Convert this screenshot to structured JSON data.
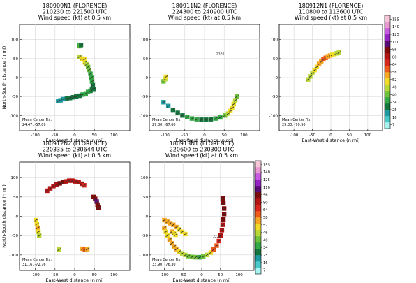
{
  "chart_data": [
    {
      "type": "scatter",
      "title_lines": [
        "180909N1 (FLORENCE)",
        "210230 to 221500 UTC",
        "Wind speed (kt) at 0.5 km"
      ],
      "xlabel": "East-West distance (n mi)",
      "ylabel": "North-South distance (n mi)",
      "xlim": [
        -140,
        140
      ],
      "ylim": [
        -140,
        140
      ],
      "xticks": [
        -100,
        -50,
        0,
        50,
        100
      ],
      "yticks": [
        -100,
        -50,
        0,
        50,
        100
      ],
      "grid": true,
      "fix_label": "Mean Center Fix:",
      "fix_value": "24.47, -57.09",
      "annotation": "",
      "series": [
        {
          "x": [
            12,
            14,
            16
          ],
          "y": [
            85,
            83,
            86
          ],
          "wind": [
            34,
            40,
            30
          ]
        },
        {
          "x": [
            12,
            18,
            24,
            26,
            30,
            34,
            36,
            40,
            42,
            44,
            46,
            48
          ],
          "y": [
            55,
            50,
            48,
            40,
            35,
            28,
            20,
            10,
            0,
            -10,
            -20,
            -30
          ],
          "wind": [
            50,
            52,
            56,
            52,
            48,
            44,
            40,
            38,
            36,
            34,
            30,
            28
          ]
        },
        {
          "x": [
            44,
            40,
            34,
            28,
            20,
            12,
            4,
            -4,
            -12,
            -20,
            -30,
            -36,
            -42
          ],
          "y": [
            -30,
            -35,
            -38,
            -42,
            -45,
            -48,
            -50,
            -52,
            -54,
            -55,
            -57,
            -60,
            -62
          ],
          "wind": [
            28,
            30,
            34,
            36,
            34,
            32,
            30,
            28,
            26,
            25,
            22,
            20,
            18
          ]
        }
      ]
    },
    {
      "type": "scatter",
      "title_lines": [
        "180911N2 (FLORENCE)",
        "224300 to 240900 UTC",
        "Wind speed (kt) at 0.5 km"
      ],
      "xlabel": "East-West distance (n mi)",
      "ylabel": "",
      "xlim": [
        -140,
        140
      ],
      "ylim": [
        -140,
        140
      ],
      "xticks": [
        -100,
        -50,
        0,
        50,
        100
      ],
      "yticks": [
        -100,
        -50,
        0,
        50,
        100
      ],
      "grid": true,
      "fix_label": "Mean Center Fix:",
      "fix_value": "27.80, -67.60",
      "annotation": "2320",
      "series": [
        {
          "x": [
            -104,
            -100,
            -98
          ],
          "y": [
            -10,
            -4,
            2
          ],
          "wind": [
            40,
            46,
            52
          ]
        },
        {
          "x": [
            -104,
            -92,
            -80,
            -68,
            -56,
            -44,
            -32,
            -20,
            -8,
            4,
            16,
            28,
            40,
            52,
            60,
            66,
            70,
            74,
            78,
            82
          ],
          "y": [
            -65,
            -75,
            -85,
            -93,
            -100,
            -104,
            -108,
            -110,
            -111,
            -111,
            -110,
            -108,
            -105,
            -100,
            -95,
            -88,
            -80,
            -70,
            -60,
            -50
          ],
          "wind": [
            18,
            22,
            26,
            30,
            32,
            34,
            34,
            34,
            33,
            32,
            32,
            34,
            38,
            44,
            50,
            54,
            56,
            52,
            46,
            40
          ]
        }
      ]
    },
    {
      "type": "scatter",
      "title_lines": [
        "180912N1 (FLORENCE)",
        "110800 to 113600 UTC",
        "Wind speed (kt) at 0.5 km"
      ],
      "xlabel": "East-West distance (n mi)",
      "ylabel": "",
      "xlim": [
        -140,
        140
      ],
      "ylim": [
        -140,
        140
      ],
      "xticks": [
        -100,
        -50,
        0,
        50,
        100
      ],
      "yticks": [
        -100,
        -50,
        0,
        50,
        100
      ],
      "grid": true,
      "fix_label": "Mean Center Fix:",
      "fix_value": "29.30, -70.50",
      "annotation": "",
      "series": [
        {
          "x": [
            -62,
            -56,
            -50,
            -44,
            -38,
            -32,
            -26,
            -20,
            -14,
            -8,
            -2,
            4,
            10,
            16,
            22
          ],
          "y": [
            -5,
            3,
            12,
            20,
            28,
            36,
            42,
            48,
            52,
            56,
            58,
            60,
            62,
            64,
            66
          ],
          "wind": [
            46,
            48,
            50,
            52,
            56,
            58,
            60,
            64,
            64,
            62,
            58,
            56,
            52,
            50,
            46
          ]
        }
      ]
    },
    {
      "type": "scatter",
      "title_lines": [
        "180912N2 (FLORENCE)",
        "220335 to 230644 UTC",
        "Wind speed (kt) at 0.5 km"
      ],
      "xlabel": "East-West distance (n mi)",
      "ylabel": "North-South distance (n mi)",
      "xlim": [
        -140,
        140
      ],
      "ylim": [
        -140,
        140
      ],
      "xticks": [
        -100,
        -50,
        0,
        50,
        100
      ],
      "yticks": [
        -100,
        -50,
        0,
        50,
        100
      ],
      "grid": true,
      "fix_label": "Mean Center Fix:",
      "fix_value": "31.16, -72.76",
      "annotation": "",
      "series": [
        {
          "x": [
            -70,
            -62,
            -54,
            -46,
            -38,
            -30,
            -22,
            -14,
            -6,
            2,
            10,
            18,
            24
          ],
          "y": [
            66,
            72,
            78,
            82,
            85,
            88,
            90,
            92,
            92,
            90,
            88,
            84,
            80
          ],
          "wind": [
            96,
            100,
            104,
            108,
            110,
            110,
            108,
            104,
            102,
            100,
            98,
            96,
            92
          ]
        },
        {
          "x": [
            48,
            52,
            56,
            58,
            60
          ],
          "y": [
            50,
            45,
            38,
            30,
            22
          ],
          "wind": [
            120,
            124,
            126,
            124,
            120
          ]
        },
        {
          "x": [
            -98,
            -96,
            -94,
            -92,
            -90
          ],
          "y": [
            -10,
            -20,
            -30,
            -40,
            -50
          ],
          "wind": [
            52,
            56,
            58,
            54,
            48
          ]
        },
        {
          "x": [
            20,
            26,
            32
          ],
          "y": [
            -84,
            -86,
            -85
          ],
          "wind": [
            62,
            64,
            58
          ]
        },
        {
          "x": [
            -40
          ],
          "y": [
            -86
          ],
          "wind": [
            48
          ]
        }
      ]
    },
    {
      "type": "scatter",
      "title_lines": [
        "180913N1 (FLORENCE)",
        "220600 to 230300 UTC",
        "Wind speed (kt) at 0.5 km"
      ],
      "xlabel": "East-West distance (n mi)",
      "ylabel": "",
      "xlim": [
        -140,
        140
      ],
      "ylim": [
        -140,
        140
      ],
      "xticks": [
        -100,
        -50,
        0,
        50,
        100
      ],
      "yticks": [
        -100,
        -50,
        0,
        50,
        100
      ],
      "grid": true,
      "fix_label": "Mean Center Fix:",
      "fix_value": "33.90, -76.30",
      "annotation": "2226",
      "series": [
        {
          "x": [
            -100,
            -96,
            -92,
            -86,
            -80,
            -74,
            -68,
            -60,
            -52,
            -44,
            -36,
            -26,
            -16,
            -6,
            4,
            14,
            24,
            32,
            40,
            46,
            50,
            54,
            56,
            58,
            60,
            60,
            58,
            56
          ],
          "y": [
            -30,
            -40,
            -50,
            -60,
            -70,
            -78,
            -85,
            -91,
            -96,
            -100,
            -103,
            -105,
            -106,
            -106,
            -104,
            -100,
            -94,
            -86,
            -76,
            -64,
            -50,
            -36,
            -22,
            -8,
            6,
            20,
            34,
            46
          ],
          "wind": [
            58,
            56,
            56,
            58,
            60,
            60,
            58,
            54,
            50,
            46,
            44,
            42,
            40,
            38,
            40,
            46,
            56,
            64,
            72,
            84,
            96,
            104,
            108,
            110,
            112,
            116,
            118,
            120
          ]
        },
        {
          "x": [
            -100,
            -92,
            -84,
            -76,
            -68,
            -60,
            -52,
            -44
          ],
          "y": [
            -10,
            -14,
            -18,
            -22,
            -28,
            -34,
            -40,
            -46
          ],
          "wind": [
            60,
            62,
            62,
            60,
            58,
            56,
            54,
            52
          ]
        },
        {
          "x": [
            -80,
            -74,
            -70
          ],
          "y": [
            -40,
            -44,
            -48
          ],
          "wind": [
            58,
            56,
            56
          ]
        }
      ]
    }
  ],
  "colorbar": {
    "levels": [
      7,
      16,
      25,
      34,
      40,
      46,
      52,
      58,
      64,
      80,
      96,
      110,
      125,
      140,
      155
    ],
    "colors": [
      "#a8f2f0",
      "#48c8c8",
      "#1f9aa0",
      "#15753e",
      "#33a845",
      "#6fc03a",
      "#b8d636",
      "#f0dc26",
      "#f5a623",
      "#ee5a1c",
      "#d7261e",
      "#b31414",
      "#7d0b0b",
      "#5a0d74",
      "#9424c4",
      "#c75ae0",
      "#e89ad0",
      "#f5c7d8"
    ],
    "tick_labels": [
      "155",
      "140",
      "125",
      "110",
      "96",
      "80",
      "64",
      "58",
      "52",
      "46",
      "40",
      "34",
      "25",
      "16",
      "7"
    ]
  }
}
